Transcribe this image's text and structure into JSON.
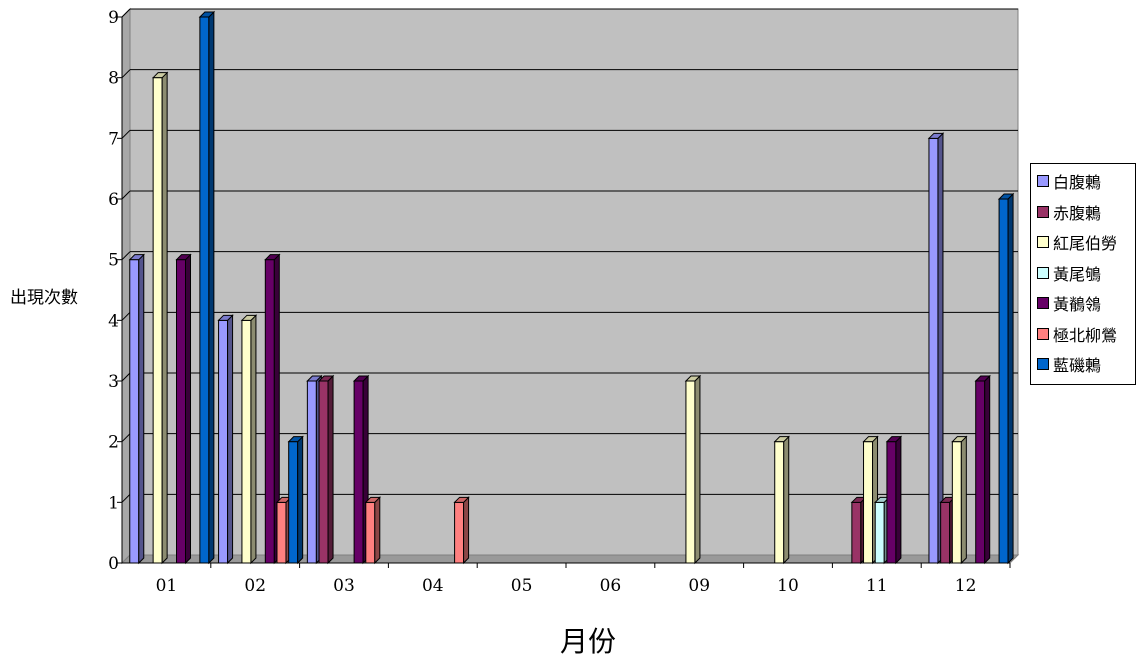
{
  "chart_data": {
    "type": "bar",
    "ylabel": "出現次數",
    "xlabel": "月份",
    "categories": [
      "01",
      "02",
      "03",
      "04",
      "05",
      "06",
      "09",
      "10",
      "11",
      "12"
    ],
    "ylim": [
      0,
      9
    ],
    "yticks": [
      "0",
      "1",
      "2",
      "3",
      "4",
      "5",
      "6",
      "7",
      "8",
      "9"
    ],
    "legend_position": "right",
    "grid": true,
    "series": [
      {
        "name": "白腹鶇",
        "color": "#9999ff",
        "values": [
          5,
          4,
          3,
          0,
          0,
          0,
          0,
          0,
          0,
          7
        ]
      },
      {
        "name": "赤腹鶇",
        "color": "#993366",
        "values": [
          0,
          0,
          3,
          0,
          0,
          0,
          0,
          0,
          1,
          1
        ]
      },
      {
        "name": "紅尾伯勞",
        "color": "#ffffcc",
        "values": [
          8,
          4,
          0,
          0,
          0,
          0,
          3,
          2,
          2,
          2
        ]
      },
      {
        "name": "黃尾鴝",
        "color": "#ccffff",
        "values": [
          0,
          0,
          0,
          0,
          0,
          0,
          0,
          0,
          1,
          0
        ]
      },
      {
        "name": "黃鶺鴒",
        "color": "#660066",
        "values": [
          5,
          5,
          3,
          0,
          0,
          0,
          0,
          0,
          2,
          3
        ]
      },
      {
        "name": "極北柳鶯",
        "color": "#ff8080",
        "values": [
          0,
          1,
          1,
          1,
          0,
          0,
          0,
          0,
          0,
          0
        ]
      },
      {
        "name": "藍磯鶇",
        "color": "#0066cc",
        "values": [
          9,
          2,
          0,
          0,
          0,
          0,
          0,
          0,
          0,
          6
        ]
      }
    ]
  }
}
